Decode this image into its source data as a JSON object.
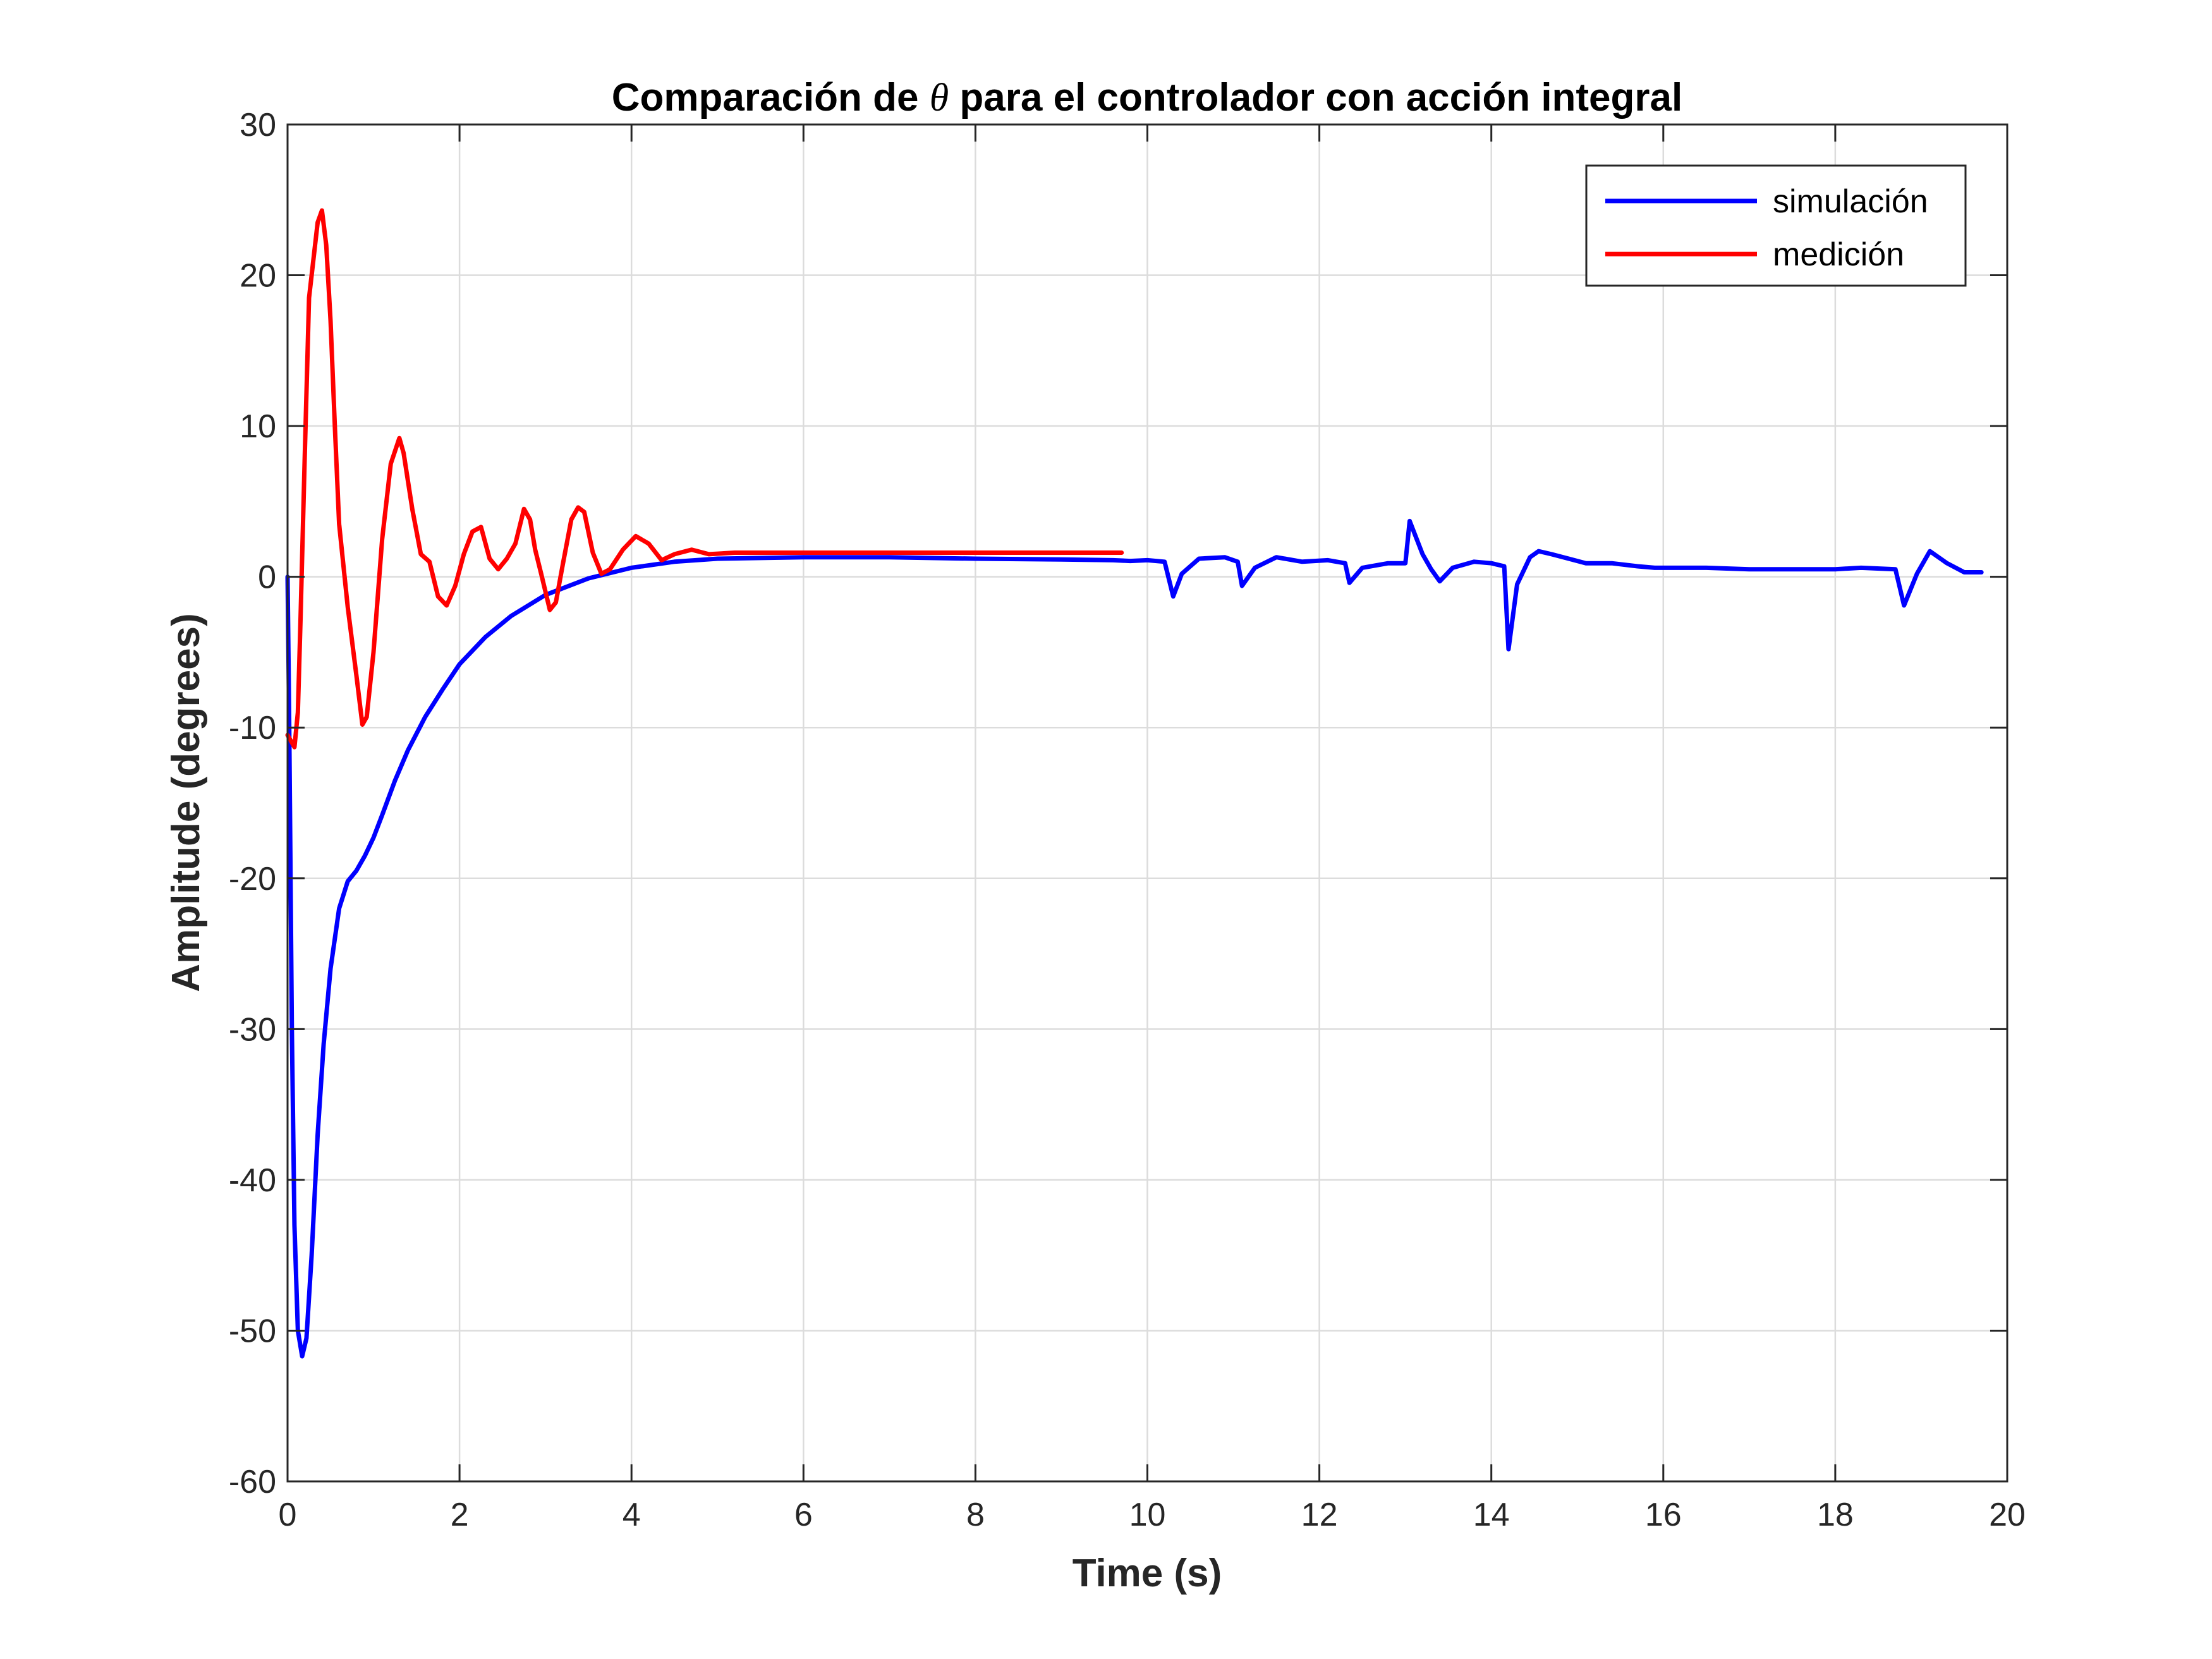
{
  "chart_data": {
    "type": "line",
    "title": {
      "prefix": "Comparación de ",
      "symbol": "θ",
      "suffix": " para el controlador con acción integral"
    },
    "xlabel": "Time (s)",
    "ylabel": "Amplitude (degrees)",
    "xlim": [
      0,
      20
    ],
    "ylim": [
      -60,
      30
    ],
    "xticks": [
      0,
      2,
      4,
      6,
      8,
      10,
      12,
      14,
      16,
      18,
      20
    ],
    "yticks": [
      -60,
      -50,
      -40,
      -30,
      -20,
      -10,
      0,
      10,
      20,
      30
    ],
    "grid": true,
    "legend_position": "top-right",
    "series": [
      {
        "name": "simulación",
        "color": "#0000ff",
        "points": [
          [
            0,
            0
          ],
          [
            0.02,
            -10
          ],
          [
            0.05,
            -30
          ],
          [
            0.08,
            -43
          ],
          [
            0.12,
            -50
          ],
          [
            0.17,
            -51.7
          ],
          [
            0.22,
            -50.5
          ],
          [
            0.28,
            -45
          ],
          [
            0.35,
            -37
          ],
          [
            0.42,
            -31
          ],
          [
            0.5,
            -26
          ],
          [
            0.6,
            -22
          ],
          [
            0.7,
            -20.2
          ],
          [
            0.8,
            -19.5
          ],
          [
            0.9,
            -18.5
          ],
          [
            1.0,
            -17.3
          ],
          [
            1.1,
            -15.8
          ],
          [
            1.25,
            -13.5
          ],
          [
            1.4,
            -11.5
          ],
          [
            1.6,
            -9.3
          ],
          [
            1.8,
            -7.5
          ],
          [
            2.0,
            -5.8
          ],
          [
            2.3,
            -4.0
          ],
          [
            2.6,
            -2.6
          ],
          [
            3.0,
            -1.2
          ],
          [
            3.5,
            -0.1
          ],
          [
            4.0,
            0.6
          ],
          [
            4.5,
            1.0
          ],
          [
            5.0,
            1.2
          ],
          [
            6.0,
            1.3
          ],
          [
            7.0,
            1.3
          ],
          [
            8.0,
            1.2
          ],
          [
            9.0,
            1.15
          ],
          [
            9.6,
            1.1
          ],
          [
            9.8,
            1.05
          ],
          [
            10.0,
            1.1
          ],
          [
            10.2,
            1.0
          ],
          [
            10.3,
            -1.3
          ],
          [
            10.4,
            0.2
          ],
          [
            10.6,
            1.2
          ],
          [
            10.9,
            1.3
          ],
          [
            11.05,
            1.0
          ],
          [
            11.1,
            -0.6
          ],
          [
            11.25,
            0.6
          ],
          [
            11.5,
            1.3
          ],
          [
            11.8,
            1.0
          ],
          [
            12.1,
            1.1
          ],
          [
            12.3,
            0.9
          ],
          [
            12.35,
            -0.4
          ],
          [
            12.5,
            0.6
          ],
          [
            12.8,
            0.9
          ],
          [
            13.0,
            0.9
          ],
          [
            13.05,
            3.7
          ],
          [
            13.2,
            1.5
          ],
          [
            13.3,
            0.5
          ],
          [
            13.4,
            -0.3
          ],
          [
            13.55,
            0.6
          ],
          [
            13.8,
            1.0
          ],
          [
            14.0,
            0.9
          ],
          [
            14.15,
            0.7
          ],
          [
            14.2,
            -4.8
          ],
          [
            14.3,
            -0.5
          ],
          [
            14.45,
            1.3
          ],
          [
            14.55,
            1.7
          ],
          [
            14.7,
            1.5
          ],
          [
            14.9,
            1.2
          ],
          [
            15.1,
            0.9
          ],
          [
            15.4,
            0.9
          ],
          [
            15.7,
            0.7
          ],
          [
            15.9,
            0.6
          ],
          [
            16.3,
            0.6
          ],
          [
            16.5,
            0.6
          ],
          [
            17.0,
            0.5
          ],
          [
            17.5,
            0.5
          ],
          [
            18.0,
            0.5
          ],
          [
            18.3,
            0.6
          ],
          [
            18.7,
            0.5
          ],
          [
            18.8,
            -1.9
          ],
          [
            18.95,
            0.2
          ],
          [
            19.1,
            1.7
          ],
          [
            19.3,
            0.9
          ],
          [
            19.5,
            0.3
          ],
          [
            19.7,
            0.3
          ]
        ]
      },
      {
        "name": "medición",
        "color": "#ff0000",
        "points": [
          [
            0,
            -10.5
          ],
          [
            0.08,
            -11.3
          ],
          [
            0.12,
            -9
          ],
          [
            0.15,
            -3
          ],
          [
            0.2,
            8
          ],
          [
            0.25,
            18.5
          ],
          [
            0.3,
            21
          ],
          [
            0.35,
            23.5
          ],
          [
            0.4,
            24.3
          ],
          [
            0.45,
            22
          ],
          [
            0.5,
            17
          ],
          [
            0.55,
            10
          ],
          [
            0.6,
            3.5
          ],
          [
            0.7,
            -2
          ],
          [
            0.8,
            -6.5
          ],
          [
            0.87,
            -9.8
          ],
          [
            0.92,
            -9.3
          ],
          [
            1.0,
            -5
          ],
          [
            1.1,
            2.5
          ],
          [
            1.2,
            7.5
          ],
          [
            1.3,
            9.2
          ],
          [
            1.35,
            8.2
          ],
          [
            1.45,
            4.5
          ],
          [
            1.55,
            1.5
          ],
          [
            1.65,
            1.0
          ],
          [
            1.75,
            -1.3
          ],
          [
            1.85,
            -1.9
          ],
          [
            1.95,
            -0.6
          ],
          [
            2.05,
            1.5
          ],
          [
            2.15,
            3.0
          ],
          [
            2.25,
            3.3
          ],
          [
            2.35,
            1.2
          ],
          [
            2.45,
            0.5
          ],
          [
            2.55,
            1.2
          ],
          [
            2.65,
            2.2
          ],
          [
            2.75,
            4.5
          ],
          [
            2.82,
            3.8
          ],
          [
            2.88,
            1.8
          ],
          [
            2.95,
            0.2
          ],
          [
            3.05,
            -2.2
          ],
          [
            3.12,
            -1.7
          ],
          [
            3.2,
            0.8
          ],
          [
            3.3,
            3.8
          ],
          [
            3.38,
            4.6
          ],
          [
            3.45,
            4.3
          ],
          [
            3.55,
            1.6
          ],
          [
            3.65,
            0.2
          ],
          [
            3.75,
            0.5
          ],
          [
            3.9,
            1.8
          ],
          [
            4.05,
            2.7
          ],
          [
            4.2,
            2.2
          ],
          [
            4.35,
            1.1
          ],
          [
            4.5,
            1.5
          ],
          [
            4.7,
            1.8
          ],
          [
            4.9,
            1.5
          ],
          [
            5.2,
            1.6
          ],
          [
            6.0,
            1.6
          ],
          [
            7.0,
            1.6
          ],
          [
            8.0,
            1.6
          ],
          [
            9.0,
            1.6
          ],
          [
            9.7,
            1.6
          ]
        ]
      }
    ]
  }
}
